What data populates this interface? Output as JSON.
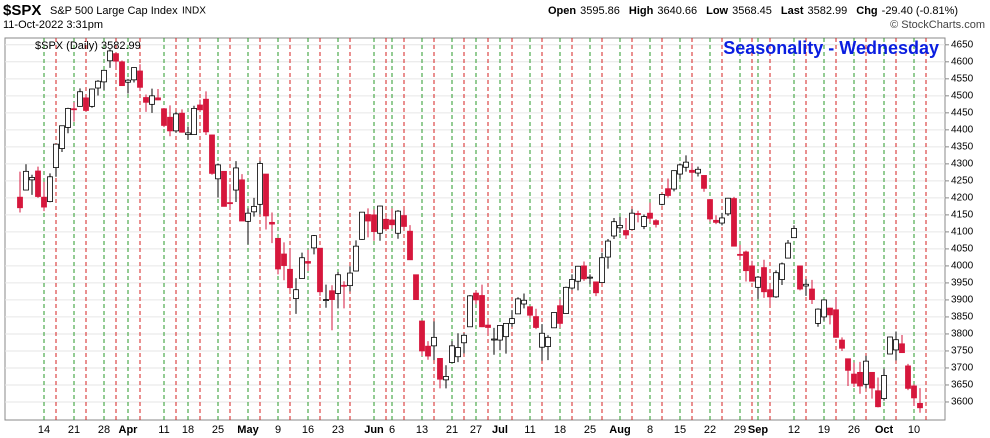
{
  "chart_data": {
    "type": "candlestick",
    "title": "$SPX",
    "subtitle": "S&P 500 Large Cap Index",
    "exchange": "INDX",
    "date": "11-Oct-2022 3:31pm",
    "quote": [
      {
        "label": "Open",
        "value": 3595.86
      },
      {
        "label": "High",
        "value": 3640.66
      },
      {
        "label": "Low",
        "value": 3568.45
      },
      {
        "label": "Last",
        "value": 3582.99
      },
      {
        "label": "Chg",
        "value": "-29.40 (-0.81%)"
      }
    ],
    "credit": "© StockCharts.com",
    "annotation": "Seasonality - Wednesday",
    "categories": [
      null,
      null,
      null,
      null,
      "14",
      null,
      null,
      null,
      null,
      "21",
      null,
      null,
      null,
      null,
      "28",
      null,
      null,
      null,
      "Apr",
      null,
      null,
      null,
      null,
      null,
      "11",
      null,
      null,
      null,
      "18",
      null,
      null,
      null,
      null,
      "25",
      null,
      null,
      null,
      null,
      "May",
      null,
      null,
      null,
      null,
      "9",
      null,
      null,
      null,
      null,
      "16",
      null,
      null,
      null,
      null,
      "23",
      null,
      null,
      null,
      null,
      null,
      "Jun",
      null,
      null,
      "6",
      null,
      null,
      null,
      null,
      "13",
      null,
      null,
      null,
      null,
      "21",
      null,
      null,
      null,
      "27",
      null,
      null,
      null,
      "Jul",
      null,
      null,
      null,
      null,
      "11",
      null,
      null,
      null,
      null,
      "18",
      null,
      null,
      null,
      null,
      "25",
      null,
      null,
      null,
      null,
      "Aug",
      null,
      null,
      null,
      null,
      "8",
      null,
      null,
      null,
      null,
      "15",
      null,
      null,
      null,
      null,
      "22",
      null,
      null,
      null,
      null,
      "29",
      null,
      null,
      "Sep",
      null,
      null,
      null,
      null,
      null,
      "12",
      null,
      null,
      null,
      null,
      "19",
      null,
      null,
      null,
      null,
      "26",
      null,
      null,
      null,
      null,
      "Oct",
      null,
      null,
      null,
      null,
      "10",
      null
    ],
    "series": [
      {
        "name": "$SPX (Daily) 3582.99",
        "up_color": "#ffffff",
        "down_color": "#d6173c",
        "open": [
          4202,
          4223,
          4253,
          4279,
          4202,
          4189,
          4289,
          4345,
          4407,
          4462,
          4469,
          4494,
          4469,
          4523,
          4541,
          4603,
          4624,
          4600,
          4540,
          4547,
          4573,
          4495,
          4475,
          4494,
          4462,
          4437,
          4397,
          4449,
          4386,
          4386,
          4473,
          4490,
          4385,
          4256,
          4278,
          4186,
          4223,
          4253,
          4131,
          4159,
          4181,
          4270,
          4128,
          4081,
          4035,
          3990,
          3904,
          3963,
          4013,
          4053,
          4052,
          3899,
          3927,
          3919,
          3943,
          3942,
          3985,
          4078,
          4151,
          4150,
          4096,
          4137,
          4135,
          4096,
          4148,
          4102,
          3974,
          3838,
          3764,
          3765,
          3728,
          3665,
          3716,
          3733,
          3774,
          3821,
          3920,
          3913,
          3826,
          3785,
          3782,
          3792,
          3831,
          3859,
          3888,
          3880,
          3851,
          3761,
          3763,
          3818,
          3883,
          3860,
          3935,
          3955,
          4000,
          3965,
          3953,
          3951,
          4026,
          4088,
          4112,
          4104,
          4107,
          4154,
          4116,
          4155,
          4133,
          4181,
          4227,
          4226,
          4270,
          4290,
          4281,
          4273,
          4266,
          4195,
          4134,
          4126,
          4153,
          4198,
          4034,
          4041,
          4000,
          3937,
          3995,
          3930,
          3909,
          3960,
          4023,
          4083,
          4000,
          3941,
          3932,
          3831,
          3850,
          3876,
          3871,
          3782,
          3727,
          3682,
          3687,
          3652,
          3687,
          3633,
          3610,
          3741,
          3753,
          3771,
          3706,
          3647,
          3595.86
        ],
        "high": [
          4277,
          4299,
          4268,
          4292,
          4247,
          4272,
          4358,
          4412,
          4465,
          4481,
          4522,
          4501,
          4521,
          4546,
          4576,
          4637,
          4627,
          4604,
          4549,
          4583,
          4593,
          4504,
          4521,
          4520,
          4464,
          4472,
          4453,
          4460,
          4410,
          4471,
          4489,
          4513,
          4386,
          4301,
          4278,
          4240,
          4308,
          4270,
          4169,
          4200,
          4308,
          4270,
          4157,
          4082,
          4069,
          4050,
          3964,
          4039,
          4047,
          4091,
          4052,
          3945,
          3943,
          3982,
          3955,
          3999,
          4075,
          4158,
          4169,
          4166,
          4177,
          4143,
          4169,
          4164,
          4165,
          4120,
          3974,
          3838,
          3779,
          3837,
          3728,
          3708,
          3779,
          3802,
          3802,
          3914,
          3928,
          3945,
          3837,
          3818,
          3826,
          3832,
          3870,
          3908,
          3919,
          3880,
          3874,
          3829,
          3796,
          3863,
          3902,
          3939,
          3975,
          4000,
          4013,
          3975,
          3953,
          4039,
          4079,
          4141,
          4144,
          4141,
          4167,
          4162,
          4151,
          4186,
          4137,
          4211,
          4257,
          4280,
          4301,
          4325,
          4302,
          4292,
          4266,
          4196,
          4149,
          4156,
          4200,
          4203,
          4062,
          4045,
          4015,
          3970,
          4018,
          3942,
          3987,
          4010,
          4076,
          4119,
          4000,
          3961,
          3959,
          3875,
          3901,
          3877,
          3907,
          3790,
          3727,
          3716,
          3718,
          3736,
          3687,
          3672,
          3698,
          3792,
          3807,
          3797,
          3712,
          3652,
          3640.66
        ],
        "low": [
          4157,
          4223,
          4209,
          4200,
          4161,
          4187,
          4262,
          4335,
          4390,
          4424,
          4469,
          4455,
          4465,
          4501,
          4517,
          4582,
          4581,
          4531,
          4507,
          4539,
          4514,
          4453,
          4450,
          4487,
          4408,
          4381,
          4392,
          4392,
          4371,
          4386,
          4455,
          4385,
          4268,
          4201,
          4175,
          4167,
          4188,
          4132,
          4063,
          4145,
          4152,
          4107,
          4067,
          3975,
          3958,
          3928,
          3859,
          3963,
          3985,
          4034,
          3912,
          3877,
          3811,
          3875,
          3875,
          3925,
          3984,
          4077,
          4084,
          4074,
          4074,
          4107,
          4109,
          4080,
          4107,
          4018,
          3900,
          3735,
          3724,
          3723,
          3640,
          3640,
          3716,
          3717,
          3743,
          3821,
          3887,
          3820,
          3800,
          3739,
          3752,
          3742,
          3821,
          3859,
          3875,
          3847,
          3814,
          3721,
          3723,
          3818,
          3818,
          3860,
          3930,
          3928,
          3956,
          3946,
          3911,
          3951,
          3992,
          4079,
          4097,
          4079,
          4107,
          4128,
          4108,
          4128,
          4113,
          4178,
          4201,
          4219,
          4256,
          4277,
          4253,
          4263,
          4218,
          4130,
          4123,
          4119,
          4147,
          4057,
          4017,
          3954,
          3954,
          3903,
          3906,
          3886,
          3906,
          3944,
          4023,
          4083,
          3928,
          3912,
          3888,
          3821,
          3839,
          3828,
          3789,
          3750,
          3647,
          3644,
          3624,
          3640,
          3610,
          3584,
          3604,
          3741,
          3722,
          3745,
          3635,
          3588,
          3568.45
        ],
        "close": [
          4171,
          4278,
          4260,
          4204,
          4173,
          4262,
          4358,
          4412,
          4463,
          4461,
          4512,
          4457,
          4520,
          4543,
          4575,
          4632,
          4602,
          4530,
          4546,
          4583,
          4525,
          4481,
          4500,
          4488,
          4413,
          4397,
          4447,
          4393,
          4391,
          4463,
          4459,
          4394,
          4272,
          4297,
          4175,
          4183,
          4288,
          4132,
          4155,
          4175,
          4301,
          4147,
          4123,
          3991,
          4001,
          3936,
          3930,
          4024,
          4008,
          4089,
          3924,
          3901,
          3901,
          3974,
          3941,
          3979,
          4058,
          4158,
          4132,
          4101,
          4176,
          4109,
          4121,
          4161,
          4116,
          4018,
          3901,
          3750,
          3735,
          3790,
          3667,
          3675,
          3765,
          3760,
          3796,
          3912,
          3900,
          3821,
          3819,
          3785,
          3825,
          3831,
          3845,
          3903,
          3899,
          3855,
          3819,
          3802,
          3790,
          3863,
          3831,
          3937,
          3960,
          3999,
          3962,
          3967,
          3921,
          4024,
          4073,
          4130,
          4119,
          4091,
          4155,
          4152,
          4145,
          4140,
          4122,
          4210,
          4207,
          4280,
          4297,
          4305,
          4275,
          4284,
          4228,
          4138,
          4128,
          4141,
          4199,
          4058,
          4031,
          3986,
          3955,
          3967,
          3924,
          3909,
          3980,
          4006,
          4067,
          4110,
          3932,
          3946,
          3901,
          3873,
          3900,
          3856,
          3790,
          3758,
          3693,
          3655,
          3647,
          3720,
          3641,
          3586,
          3678,
          3791,
          3783,
          3745,
          3640,
          3612,
          3582.99
        ]
      }
    ],
    "ylim": [
      3547,
      4670
    ],
    "yticks": [
      3600,
      3650,
      3700,
      3750,
      3800,
      3850,
      3900,
      3950,
      4000,
      4050,
      4100,
      4150,
      4200,
      4250,
      4300,
      4350,
      4400,
      4450,
      4500,
      4550,
      4600,
      4650
    ],
    "grid": true
  }
}
